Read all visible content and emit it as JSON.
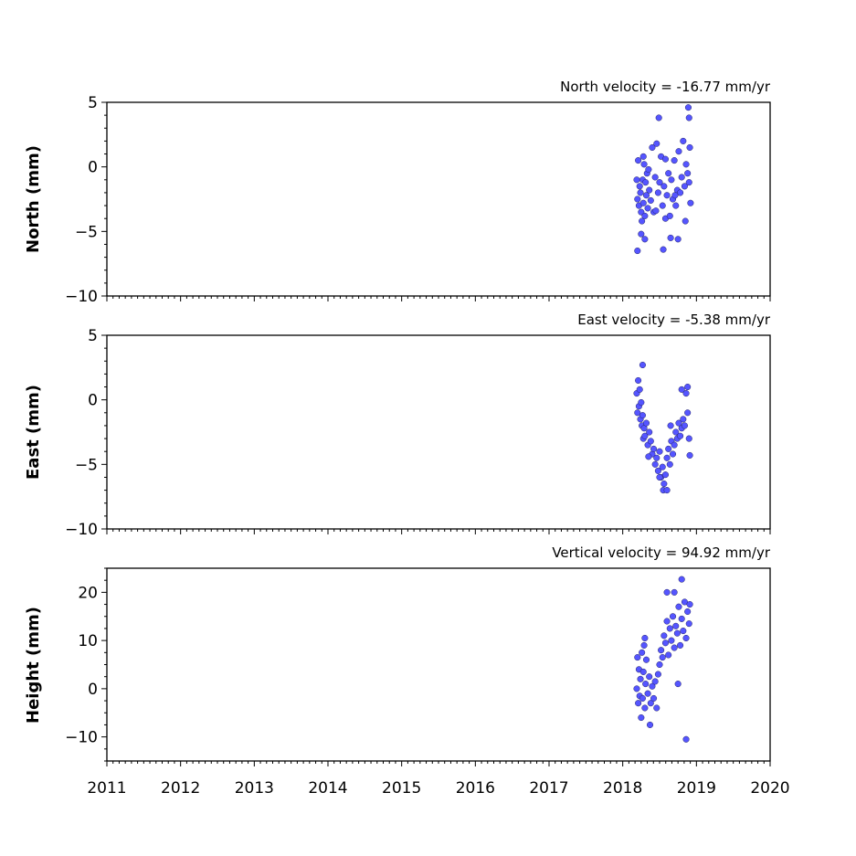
{
  "chart_data": {
    "type": "scatter",
    "x_range": [
      2011,
      2020
    ],
    "x_tick_labels": [
      "2011",
      "2012",
      "2013",
      "2014",
      "2015",
      "2016",
      "2017",
      "2018",
      "2019",
      "2020"
    ],
    "panels": [
      {
        "id": "north",
        "ylabel": "North (mm)",
        "velocity_label": "North velocity = -16.77 mm/yr",
        "ylim": [
          -10,
          5
        ],
        "y_tick_labels": [
          "5",
          "0",
          "−5",
          "−10"
        ],
        "y_ticks": [
          5,
          0,
          -5,
          -10
        ],
        "x": [
          2018.19,
          2018.2,
          2018.21,
          2018.22,
          2018.23,
          2018.24,
          2018.25,
          2018.26,
          2018.27,
          2018.28,
          2018.29,
          2018.3,
          2018.31,
          2018.32,
          2018.33,
          2018.34,
          2018.36,
          2018.38,
          2018.4,
          2018.42,
          2018.44,
          2018.46,
          2018.48,
          2018.5,
          2018.52,
          2018.54,
          2018.56,
          2018.58,
          2018.6,
          2018.62,
          2018.64,
          2018.66,
          2018.68,
          2018.7,
          2018.72,
          2018.74,
          2018.76,
          2018.78,
          2018.8,
          2018.82,
          2018.84,
          2018.86,
          2018.88,
          2018.9,
          2018.91,
          2018.92,
          2018.2,
          2018.25,
          2018.3,
          2018.35,
          2018.45,
          2018.55,
          2018.65,
          2018.75,
          2018.85,
          2018.89,
          2018.9,
          2018.28,
          2018.49,
          2018.58,
          2018.71
        ],
        "y": [
          -1.0,
          -2.5,
          0.5,
          -3.0,
          -1.5,
          -2.0,
          -3.5,
          -4.2,
          -1.0,
          -2.8,
          0.2,
          -3.8,
          -1.2,
          -2.2,
          -0.5,
          -3.2,
          -1.8,
          -2.6,
          1.5,
          -3.5,
          -0.8,
          1.8,
          -2.0,
          -1.2,
          0.8,
          -3.0,
          -1.5,
          -4.0,
          -2.2,
          -0.5,
          -3.8,
          -1.0,
          -2.5,
          0.5,
          -3.0,
          -1.8,
          1.2,
          -2.0,
          -0.8,
          2.0,
          -1.5,
          0.2,
          -0.5,
          -1.2,
          1.5,
          -2.8,
          -6.5,
          -5.2,
          -5.6,
          -0.2,
          -3.4,
          -6.4,
          -5.5,
          -5.6,
          -4.2,
          4.6,
          3.8,
          0.8,
          3.8,
          0.6,
          -2.2
        ]
      },
      {
        "id": "east",
        "ylabel": "East (mm)",
        "velocity_label": "East velocity = -5.38 mm/yr",
        "ylim": [
          -10,
          5
        ],
        "y_tick_labels": [
          "5",
          "0",
          "−5",
          "−10"
        ],
        "y_ticks": [
          5,
          0,
          -5,
          -10
        ],
        "x": [
          2018.19,
          2018.2,
          2018.21,
          2018.22,
          2018.23,
          2018.24,
          2018.25,
          2018.26,
          2018.27,
          2018.28,
          2018.29,
          2018.3,
          2018.32,
          2018.34,
          2018.36,
          2018.38,
          2018.4,
          2018.42,
          2018.44,
          2018.46,
          2018.48,
          2018.5,
          2018.52,
          2018.54,
          2018.56,
          2018.58,
          2018.6,
          2018.62,
          2018.64,
          2018.66,
          2018.68,
          2018.7,
          2018.72,
          2018.74,
          2018.76,
          2018.78,
          2018.8,
          2018.82,
          2018.84,
          2018.86,
          2018.88,
          2018.9,
          2018.91,
          2018.27,
          2018.35,
          2018.5,
          2018.55,
          2018.6,
          2018.65,
          2018.8,
          2018.88
        ],
        "y": [
          0.5,
          -1.0,
          1.5,
          -0.5,
          0.8,
          -1.5,
          -0.2,
          -2.0,
          -1.2,
          -3.0,
          -2.2,
          -2.8,
          -1.8,
          -3.5,
          -2.5,
          -3.2,
          -4.2,
          -3.8,
          -5.0,
          -4.5,
          -5.5,
          -4.0,
          -6.0,
          -5.2,
          -6.5,
          -5.8,
          -4.5,
          -3.8,
          -5.0,
          -3.2,
          -4.2,
          -3.5,
          -2.5,
          -3.0,
          -1.8,
          -2.8,
          -2.2,
          -1.5,
          -2.0,
          0.5,
          -1.0,
          -3.0,
          -4.3,
          2.7,
          -4.4,
          -6.0,
          -7.0,
          -7.0,
          -2.0,
          0.8,
          1.0
        ]
      },
      {
        "id": "height",
        "ylabel": "Height (mm)",
        "velocity_label": "Vertical velocity = 94.92 mm/yr",
        "ylim": [
          -15,
          25
        ],
        "y_tick_labels": [
          "20",
          "10",
          "0",
          "−10"
        ],
        "y_ticks": [
          20,
          10,
          0,
          -10
        ],
        "x": [
          2018.19,
          2018.2,
          2018.21,
          2018.22,
          2018.23,
          2018.24,
          2018.25,
          2018.26,
          2018.27,
          2018.28,
          2018.29,
          2018.3,
          2018.31,
          2018.32,
          2018.34,
          2018.36,
          2018.38,
          2018.4,
          2018.42,
          2018.44,
          2018.46,
          2018.48,
          2018.5,
          2018.52,
          2018.54,
          2018.56,
          2018.58,
          2018.6,
          2018.62,
          2018.64,
          2018.66,
          2018.68,
          2018.7,
          2018.72,
          2018.74,
          2018.76,
          2018.78,
          2018.8,
          2018.82,
          2018.84,
          2018.86,
          2018.88,
          2018.9,
          2018.91,
          2018.3,
          2018.37,
          2018.6,
          2018.7,
          2018.8,
          2018.86,
          2018.75
        ],
        "y": [
          0.0,
          6.5,
          -3.0,
          4.0,
          -1.5,
          2.0,
          -6.0,
          7.5,
          -2.0,
          3.5,
          9.0,
          -4.0,
          1.0,
          6.0,
          -1.0,
          2.5,
          -3.0,
          0.5,
          -2.0,
          1.5,
          -4.0,
          3.0,
          5.0,
          8.0,
          6.5,
          11.0,
          9.5,
          14.0,
          7.0,
          12.5,
          10.0,
          15.0,
          8.5,
          13.0,
          11.5,
          17.0,
          9.0,
          14.5,
          12.0,
          18.0,
          10.5,
          16.0,
          13.5,
          17.5,
          10.5,
          -7.5,
          20.0,
          20.0,
          22.7,
          -10.5,
          1.0
        ]
      }
    ]
  }
}
